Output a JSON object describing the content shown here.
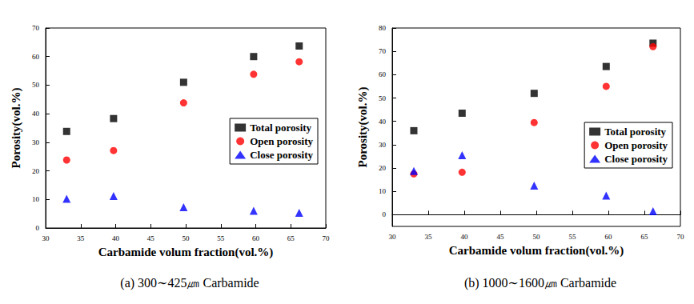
{
  "chart_data": [
    {
      "type": "scatter",
      "title": "(a) 300∼425㎛ Carbamide",
      "x_label": "Carbamide volum fraction(vol.%)",
      "y_label": "Porosity(vol.%)",
      "xlim": [
        30,
        70
      ],
      "xticks": [
        30,
        35,
        40,
        45,
        50,
        55,
        60,
        65,
        70
      ],
      "ylim": [
        0,
        70
      ],
      "yticks": [
        0,
        10,
        20,
        30,
        40,
        50,
        60,
        70
      ],
      "grid": false,
      "legend": "right",
      "x": [
        33,
        39.7,
        49.7,
        59.7,
        66.2
      ],
      "series": [
        {
          "name": "Total porosity",
          "color": "#000000",
          "marker": "square",
          "values": [
            33.8,
            38.3,
            51,
            60,
            63.7
          ]
        },
        {
          "name": "Open porosity",
          "color": "#ff0000",
          "marker": "circle",
          "values": [
            23.8,
            27.1,
            43.8,
            53.8,
            58.2
          ]
        },
        {
          "name": "Close porosity",
          "color": "#0000ff",
          "marker": "triangle",
          "values": [
            10.2,
            11.2,
            7.3,
            6,
            5.3
          ]
        }
      ]
    },
    {
      "type": "scatter",
      "title": "(b) 1000∼1600㎛ Carbamide",
      "x_label": "Carbamide volum fraction(vol.%)",
      "y_label": "Porosity(vol.%)",
      "xlim": [
        30,
        70
      ],
      "xticks": [
        30,
        35,
        40,
        45,
        50,
        55,
        60,
        65,
        70
      ],
      "ylim": [
        -5,
        80
      ],
      "yticks": [
        0,
        10,
        20,
        30,
        40,
        50,
        60,
        70,
        80
      ],
      "grid": false,
      "legend": "right",
      "x": [
        33,
        39.7,
        49.7,
        59.7,
        66.2
      ],
      "series": [
        {
          "name": "Total porosity",
          "color": "#000000",
          "marker": "square",
          "values": [
            36,
            43.5,
            52,
            63.5,
            73.5
          ]
        },
        {
          "name": "Open porosity",
          "color": "#ff0000",
          "marker": "circle",
          "values": [
            17.5,
            18.2,
            39.5,
            55,
            72
          ]
        },
        {
          "name": "Close porosity",
          "color": "#0000ff",
          "marker": "triangle",
          "values": [
            18.7,
            25.5,
            12.5,
            8.2,
            1.5
          ]
        }
      ]
    }
  ]
}
